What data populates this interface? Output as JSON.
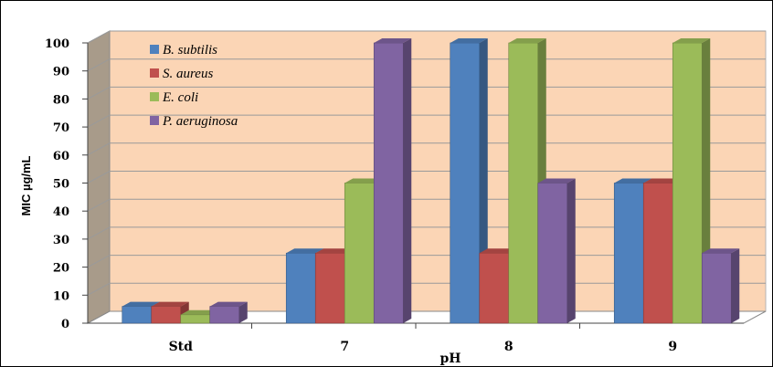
{
  "chart_data": {
    "type": "bar",
    "title": "",
    "xlabel": "pH",
    "ylabel": "MIC µg/mL",
    "categories": [
      "Std",
      "7",
      "8",
      "9"
    ],
    "ylim": [
      0,
      100
    ],
    "yticks": [
      0,
      10,
      20,
      30,
      40,
      50,
      60,
      70,
      80,
      90,
      100
    ],
    "grid": true,
    "legend_position": "top-left",
    "style": "3d-clustered-column",
    "background_color": "#FBD5B5",
    "series": [
      {
        "name": "B. subtilis",
        "color": "#4F81BD",
        "values": [
          6,
          25,
          100,
          50
        ]
      },
      {
        "name": "S. aureus",
        "color": "#C0504D",
        "values": [
          6,
          25,
          25,
          50
        ]
      },
      {
        "name": "E. coli",
        "color": "#9BBB59",
        "values": [
          3,
          50,
          100,
          100
        ]
      },
      {
        "name": "P. aeruginosa",
        "color": "#8064A2",
        "values": [
          6,
          100,
          50,
          25
        ]
      }
    ]
  }
}
